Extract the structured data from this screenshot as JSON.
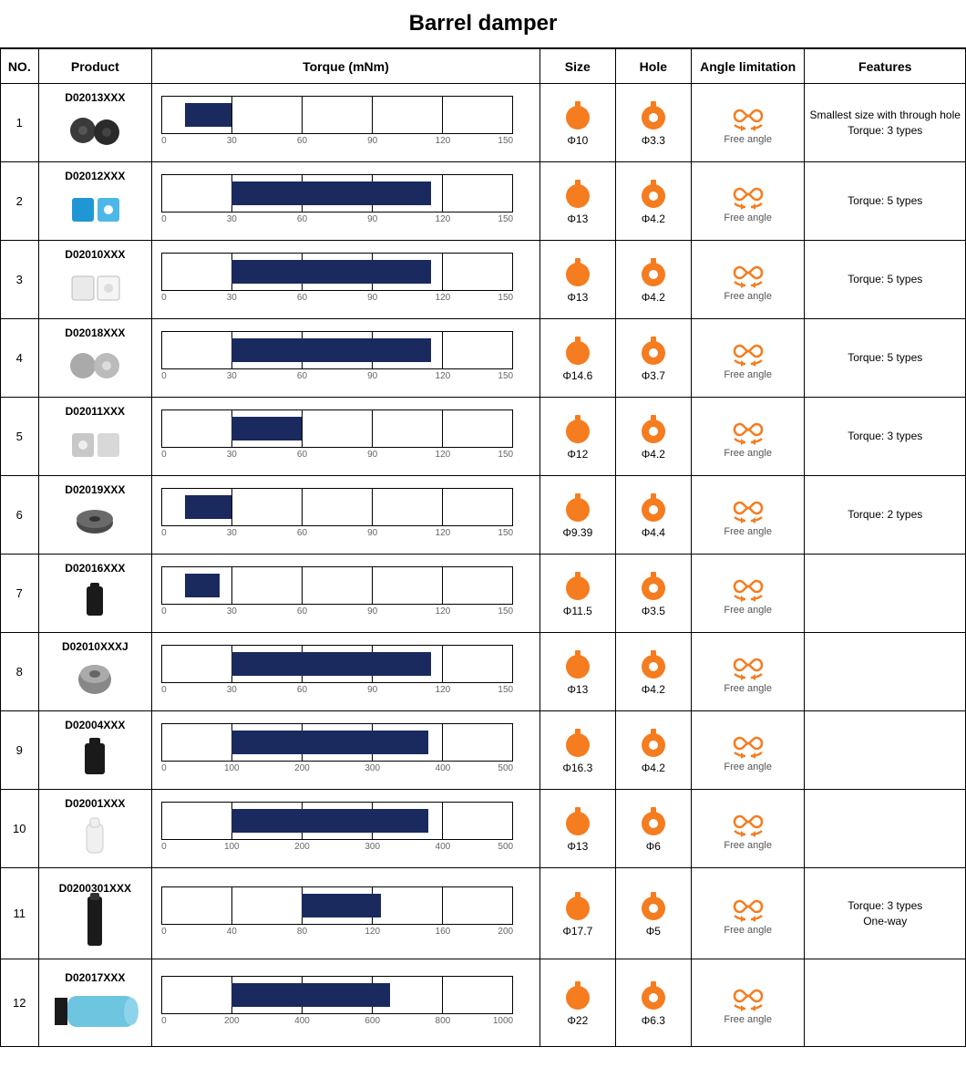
{
  "title": "Barrel damper",
  "columns": [
    "NO.",
    "Product",
    "Torque (mNm)",
    "Size",
    "Hole",
    "Angle limitation",
    "Features"
  ],
  "colors": {
    "bar": "#1a2a5e",
    "icon": "#f57c1f",
    "grid": "#000000",
    "tick_text": "#666666"
  },
  "chart": {
    "segments": 5,
    "tick_fontsize": 10
  },
  "angle_label": "Free angle",
  "rows": [
    {
      "no": "1",
      "code": "D02013XXX",
      "product_shape": "barrel_pair_dark",
      "torque": {
        "max": 150,
        "ticks": [
          0,
          30,
          60,
          90,
          120,
          150
        ],
        "bar_start": 10,
        "bar_end": 30
      },
      "size": "Φ10",
      "hole": "Φ3.3",
      "features": "Smallest size with through hole\nTorque: 3 types"
    },
    {
      "no": "2",
      "code": "D02012XXX",
      "product_shape": "barrel_pair_blue",
      "torque": {
        "max": 150,
        "ticks": [
          0,
          30,
          60,
          90,
          120,
          150
        ],
        "bar_start": 30,
        "bar_end": 115
      },
      "size": "Φ13",
      "hole": "Φ4.2",
      "features": "Torque: 5 types"
    },
    {
      "no": "3",
      "code": "D02010XXX",
      "product_shape": "barrel_pair_white",
      "torque": {
        "max": 150,
        "ticks": [
          0,
          30,
          60,
          90,
          120,
          150
        ],
        "bar_start": 30,
        "bar_end": 115
      },
      "size": "Φ13",
      "hole": "Φ4.2",
      "features": "Torque: 5 types"
    },
    {
      "no": "4",
      "code": "D02018XXX",
      "product_shape": "barrel_pair_gray",
      "torque": {
        "max": 150,
        "ticks": [
          0,
          30,
          60,
          90,
          120,
          150
        ],
        "bar_start": 30,
        "bar_end": 115
      },
      "size": "Φ14.6",
      "hole": "Φ3.7",
      "features": "Torque: 5 types"
    },
    {
      "no": "5",
      "code": "D02011XXX",
      "product_shape": "barrel_pair_gray2",
      "torque": {
        "max": 150,
        "ticks": [
          0,
          30,
          60,
          90,
          120,
          150
        ],
        "bar_start": 30,
        "bar_end": 60
      },
      "size": "Φ12",
      "hole": "Φ4.2",
      "features": "Torque: 3 types"
    },
    {
      "no": "6",
      "code": "D02019XXX",
      "product_shape": "disc_dark",
      "torque": {
        "max": 150,
        "ticks": [
          0,
          30,
          60,
          90,
          120,
          150
        ],
        "bar_start": 10,
        "bar_end": 30
      },
      "size": "Φ9.39",
      "hole": "Φ4.4",
      "features": "Torque: 2 types"
    },
    {
      "no": "7",
      "code": "D02016XXX",
      "product_shape": "cyl_black",
      "torque": {
        "max": 150,
        "ticks": [
          0,
          30,
          60,
          90,
          120,
          150
        ],
        "bar_start": 10,
        "bar_end": 25
      },
      "size": "Φ11.5",
      "hole": "Φ3.5",
      "features": ""
    },
    {
      "no": "8",
      "code": "D02010XXXJ",
      "product_shape": "barrel_single_gray",
      "torque": {
        "max": 150,
        "ticks": [
          0,
          30,
          60,
          90,
          120,
          150
        ],
        "bar_start": 30,
        "bar_end": 115
      },
      "size": "Φ13",
      "hole": "Φ4.2",
      "features": ""
    },
    {
      "no": "9",
      "code": "D02004XXX",
      "product_shape": "cyl_black2",
      "torque": {
        "max": 500,
        "ticks": [
          0,
          100,
          200,
          300,
          400,
          500
        ],
        "bar_start": 100,
        "bar_end": 380
      },
      "size": "Φ16.3",
      "hole": "Φ4.2",
      "features": ""
    },
    {
      "no": "10",
      "code": "D02001XXX",
      "product_shape": "cyl_white",
      "torque": {
        "max": 500,
        "ticks": [
          0,
          100,
          200,
          300,
          400,
          500
        ],
        "bar_start": 100,
        "bar_end": 380
      },
      "size": "Φ13",
      "hole": "Φ6",
      "features": ""
    },
    {
      "no": "11",
      "code": "D0200301XXX",
      "product_shape": "cyl_black_tall",
      "torque": {
        "max": 200,
        "ticks": [
          0,
          40,
          80,
          120,
          160,
          200
        ],
        "bar_start": 80,
        "bar_end": 125
      },
      "size": "Φ17.7",
      "hole": "Φ5",
      "features": "Torque: 3 types\nOne-way"
    },
    {
      "no": "12",
      "code": "D02017XXX",
      "product_shape": "cyl_blue_long",
      "torque": {
        "max": 1000,
        "ticks": [
          0,
          200,
          400,
          600,
          800,
          1000
        ],
        "bar_start": 200,
        "bar_end": 650
      },
      "size": "Φ22",
      "hole": "Φ6.3",
      "features": ""
    }
  ]
}
